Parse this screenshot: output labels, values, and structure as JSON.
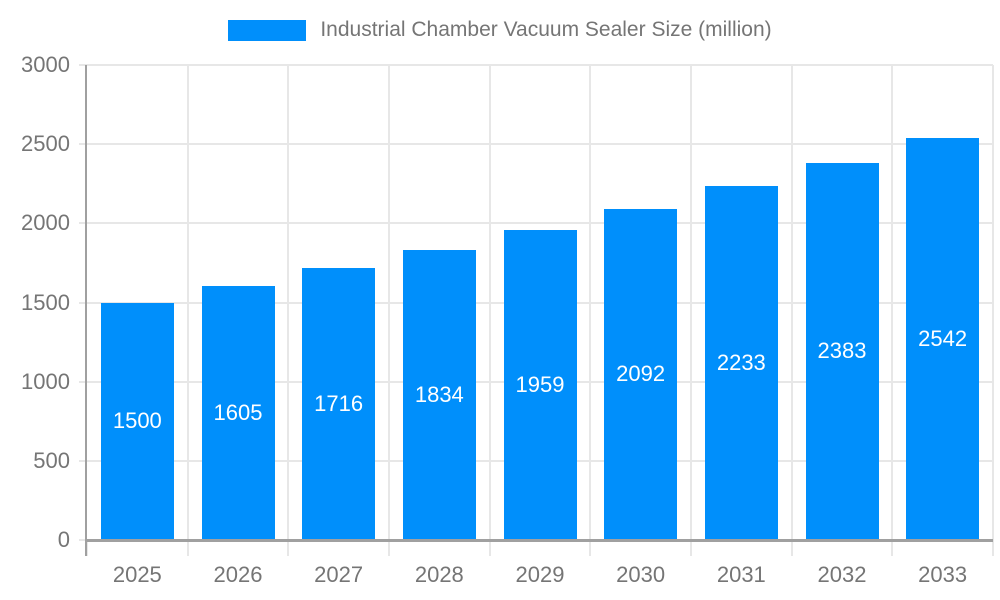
{
  "chart_data": {
    "type": "bar",
    "title": "Industrial Chamber Vacuum Sealer Size (million)",
    "categories": [
      "2025",
      "2026",
      "2027",
      "2028",
      "2029",
      "2030",
      "2031",
      "2032",
      "2033"
    ],
    "values": [
      1500,
      1605,
      1716,
      1834,
      1959,
      2092,
      2233,
      2383,
      2542
    ],
    "xlabel": "",
    "ylabel": "",
    "ylim": [
      0,
      3000
    ],
    "yticks": [
      0,
      500,
      1000,
      1500,
      2000,
      2500,
      3000
    ],
    "grid": true,
    "legend_position": "top",
    "legend_entries": [
      "Industrial Chamber Vacuum Sealer Size (million)"
    ],
    "colors": {
      "bar": "#008FFB",
      "grid": "#e7e7e7",
      "axis": "#a0a0a0",
      "tick_text": "#757575",
      "value_label": "#ffffff",
      "background": "#ffffff"
    }
  }
}
